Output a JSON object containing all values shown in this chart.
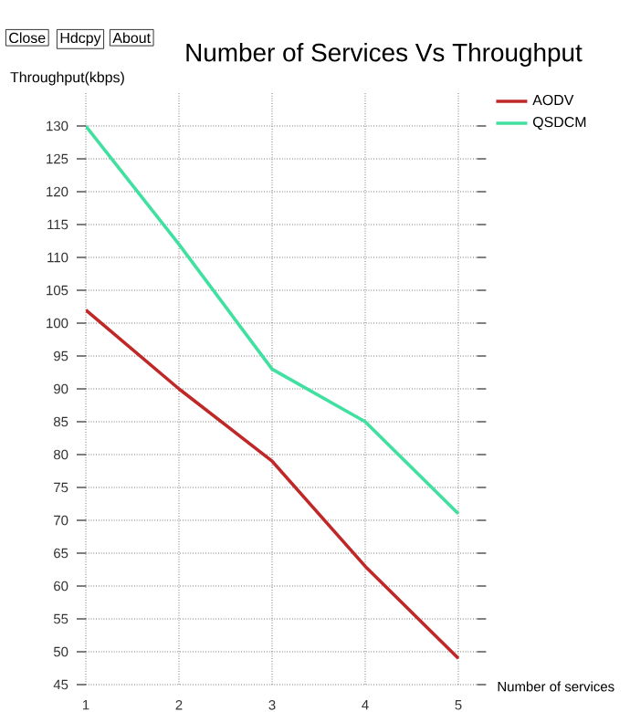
{
  "chart_data": {
    "type": "line",
    "title": "Number of Services Vs Throughput",
    "xlabel": "Number of services",
    "ylabel": "Throughput(kbps)",
    "annotations": [
      "Close",
      "Hdcpy",
      "About"
    ],
    "x": [
      1,
      2,
      3,
      4,
      5
    ],
    "series": [
      {
        "name": "AODV",
        "color": "#c02828",
        "values": [
          102,
          90,
          79,
          63,
          49
        ]
      },
      {
        "name": "QSDCM",
        "color": "#40e0a0",
        "values": [
          130,
          112,
          93,
          85,
          71
        ]
      }
    ],
    "xlim": [
      1,
      5.2
    ],
    "xticks": [
      1,
      2,
      3,
      4,
      5
    ],
    "ylim": [
      45,
      135
    ],
    "yticks": [
      45,
      50,
      55,
      60,
      65,
      70,
      75,
      80,
      85,
      90,
      95,
      100,
      105,
      110,
      115,
      120,
      125,
      130
    ],
    "grid": true,
    "legend": "top right",
    "marker": "none",
    "line_style": "solid"
  }
}
